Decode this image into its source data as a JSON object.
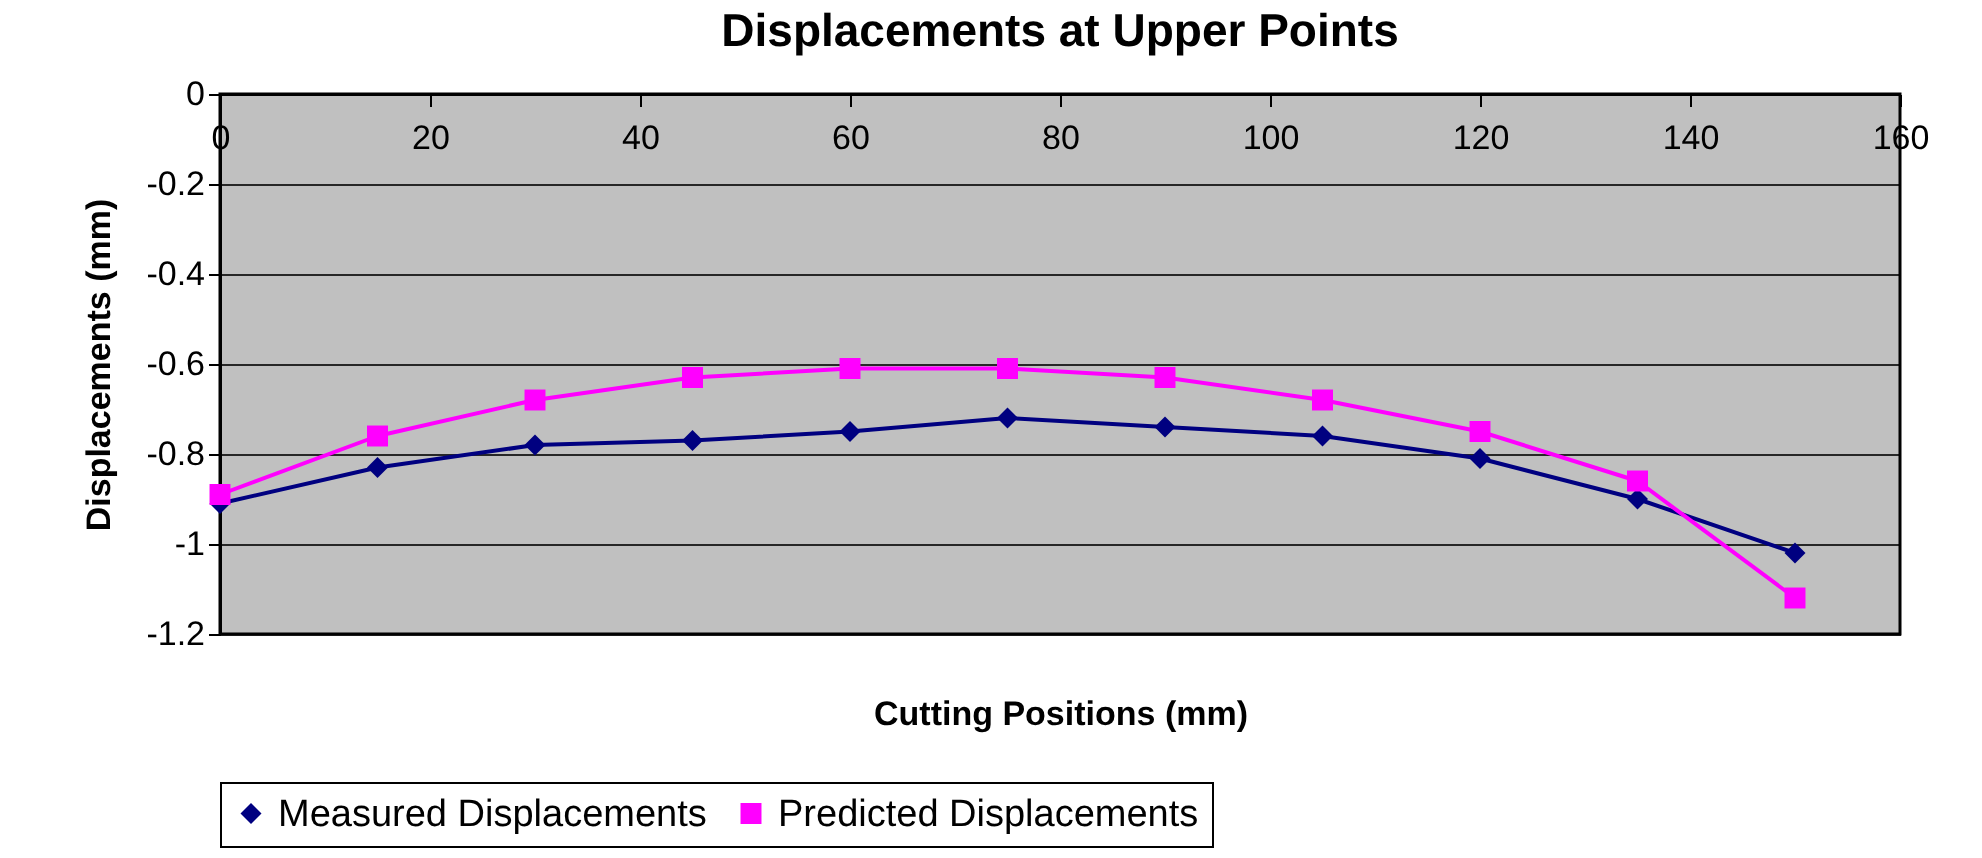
{
  "chart_data": {
    "type": "line",
    "title": "Displacements at Upper Points",
    "xlabel": "Cutting Positions (mm)",
    "ylabel": "Displacements (mm)",
    "x": [
      0,
      15,
      30,
      45,
      60,
      75,
      90,
      105,
      120,
      135,
      150
    ],
    "series": [
      {
        "name": "Measured Displacements",
        "color": "#000080",
        "marker": "diamond",
        "values": [
          -0.91,
          -0.83,
          -0.78,
          -0.77,
          -0.75,
          -0.72,
          -0.74,
          -0.76,
          -0.81,
          -0.9,
          -1.02
        ]
      },
      {
        "name": "Predicted Displacements",
        "color": "#ff00ff",
        "marker": "square",
        "values": [
          -0.89,
          -0.76,
          -0.68,
          -0.63,
          -0.61,
          -0.61,
          -0.63,
          -0.68,
          -0.75,
          -0.86,
          -1.12
        ]
      }
    ],
    "xlim": [
      0,
      160
    ],
    "xticks": [
      0,
      20,
      40,
      60,
      80,
      100,
      120,
      140,
      160
    ],
    "ylim": [
      -1.2,
      0
    ],
    "yticks": [
      0,
      -0.2,
      -0.4,
      -0.6,
      -0.8,
      -1,
      -1.2
    ],
    "grid": "y",
    "legend": "bottom",
    "line_style": "solid"
  }
}
